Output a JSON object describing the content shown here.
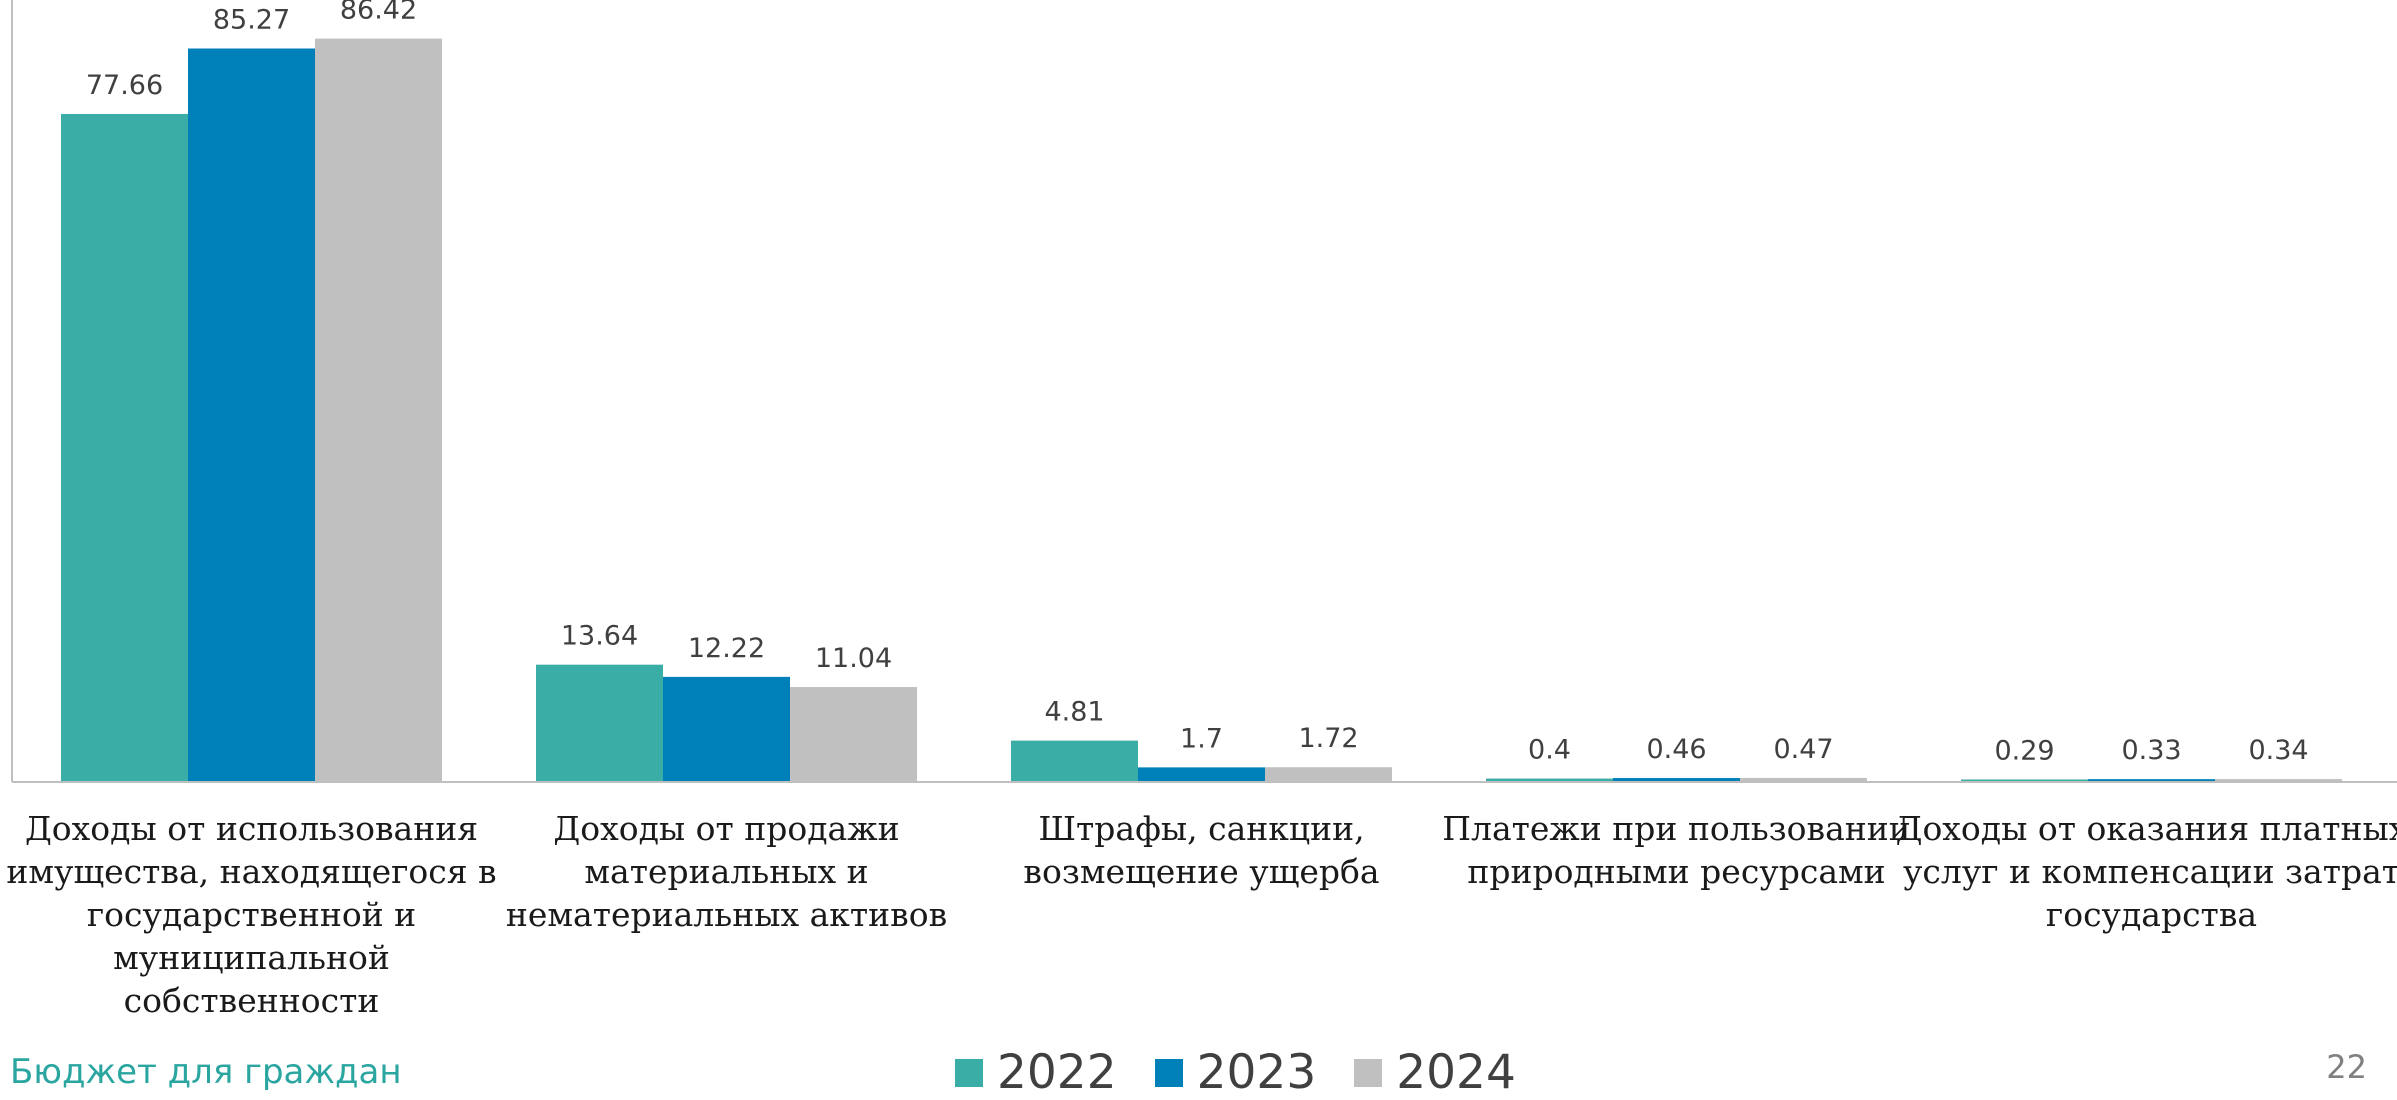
{
  "chart_data": {
    "type": "bar",
    "categories": [
      [
        "Доходы от использования",
        "имущества, находящегося в",
        "государственной и",
        "муниципальной",
        "собственности"
      ],
      [
        "Доходы от продажи",
        "материальных и",
        "нематериальных активов"
      ],
      [
        "Штрафы, санкции,",
        "возмещение ущерба"
      ],
      [
        "Платежи при пользовании",
        "природными ресурсами"
      ],
      [
        "Доходы от оказания платных",
        "услуг и компенсации затрат",
        "государства"
      ]
    ],
    "series": [
      {
        "name": "2022",
        "color": "#3aada6",
        "values": [
          77.66,
          13.64,
          4.81,
          0.4,
          0.29
        ]
      },
      {
        "name": "2023",
        "color": "#0080b8",
        "values": [
          85.27,
          12.22,
          1.7,
          0.46,
          0.33
        ]
      },
      {
        "name": "2024",
        "color": "#c0c0c0",
        "values": [
          86.42,
          11.04,
          1.72,
          0.47,
          0.34
        ]
      }
    ],
    "value_labels": [
      [
        "77.66",
        "13.64",
        "4.81",
        "0.4",
        "0.29"
      ],
      [
        "85.27",
        "12.22",
        "1.7",
        "0.46",
        "0.33"
      ],
      [
        "86.42",
        "11.04",
        "1.72",
        "0.47",
        "0.34"
      ]
    ],
    "ylim": [
      0,
      100
    ],
    "grid": false,
    "legend_position": "bottom"
  },
  "footer": {
    "left_text": "Бюджет для граждан",
    "page_number": "22"
  },
  "legend": [
    {
      "label": "2022",
      "color": "#3aada6"
    },
    {
      "label": "2023",
      "color": "#0080b8"
    },
    {
      "label": "2024",
      "color": "#c0c0c0"
    }
  ]
}
